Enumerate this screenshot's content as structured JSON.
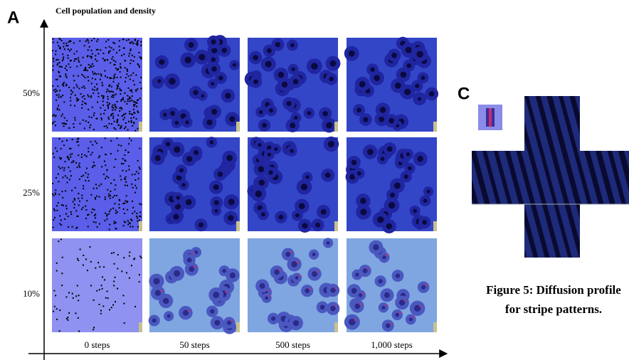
{
  "panel_a": {
    "label": "A",
    "y_axis_title": "Cell population and density",
    "rows": [
      "50%",
      "25%",
      "10%"
    ],
    "columns": [
      "0 steps",
      "50 steps",
      "500 steps",
      "1,000 steps"
    ]
  },
  "panel_c": {
    "label": "C",
    "caption": [
      "Figure 5: Diffusion profile",
      "for stripe patterns."
    ]
  }
}
